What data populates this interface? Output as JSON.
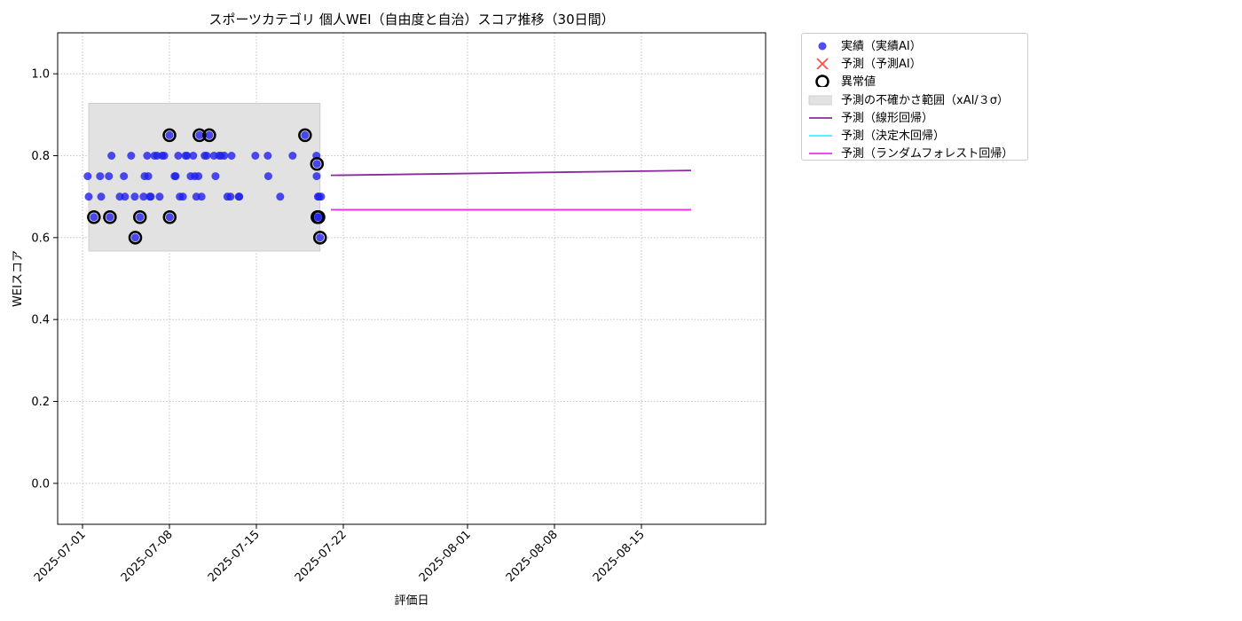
{
  "chart_data": {
    "type": "scatter",
    "title": "スポーツカテゴリ 個人WEI（自由度と自治）スコア推移（30日間）",
    "xlabel": "評価日",
    "ylabel": "WEIスコア",
    "ylim": [
      -0.1,
      1.1
    ],
    "xlim": [
      "2025-06-29",
      "2025-08-25"
    ],
    "x_ticks": [
      "2025-07-01",
      "2025-07-08",
      "2025-07-15",
      "2025-07-22",
      "2025-08-01",
      "2025-08-08",
      "2025-08-15"
    ],
    "y_ticks": [
      0.0,
      0.2,
      0.4,
      0.6,
      0.8,
      1.0
    ],
    "y_tick_labels": [
      "0.0",
      "0.2",
      "0.4",
      "0.6",
      "0.8",
      "1.0"
    ],
    "grid": true,
    "legend_position": "outside-top-right",
    "series": [
      {
        "name": "実績（実績AI）",
        "kind": "scatter",
        "color": "#2020ee",
        "points": [
          [
            "2025-07-01 10:00",
            0.75
          ],
          [
            "2025-07-01 12:00",
            0.7
          ],
          [
            "2025-07-01 22:00",
            0.65
          ],
          [
            "2025-07-02 10:00",
            0.75
          ],
          [
            "2025-07-02 12:00",
            0.7
          ],
          [
            "2025-07-03 03:00",
            0.75
          ],
          [
            "2025-07-03 05:00",
            0.65
          ],
          [
            "2025-07-03 08:00",
            0.8
          ],
          [
            "2025-07-04 00:00",
            0.7
          ],
          [
            "2025-07-04 08:00",
            0.75
          ],
          [
            "2025-07-04 10:00",
            0.7
          ],
          [
            "2025-07-04 22:00",
            0.8
          ],
          [
            "2025-07-05 05:00",
            0.7
          ],
          [
            "2025-07-05 06:00",
            0.6
          ],
          [
            "2025-07-05 15:00",
            0.65
          ],
          [
            "2025-07-05 22:00",
            0.7
          ],
          [
            "2025-07-06 00:00",
            0.75
          ],
          [
            "2025-07-06 05:00",
            0.8
          ],
          [
            "2025-07-06 07:00",
            0.75
          ],
          [
            "2025-07-06 10:00",
            0.7
          ],
          [
            "2025-07-06 12:00",
            0.7
          ],
          [
            "2025-07-06 19:00",
            0.8
          ],
          [
            "2025-07-07 00:00",
            0.8
          ],
          [
            "2025-07-07 05:00",
            0.7
          ],
          [
            "2025-07-07 10:00",
            0.8
          ],
          [
            "2025-07-07 14:00",
            0.8
          ],
          [
            "2025-07-08 00:00",
            0.85
          ],
          [
            "2025-07-08 00:30",
            0.65
          ],
          [
            "2025-07-08 10:00",
            0.75
          ],
          [
            "2025-07-08 12:00",
            0.75
          ],
          [
            "2025-07-08 17:00",
            0.8
          ],
          [
            "2025-07-08 20:00",
            0.7
          ],
          [
            "2025-07-09 02:00",
            0.7
          ],
          [
            "2025-07-09 07:00",
            0.8
          ],
          [
            "2025-07-09 10:00",
            0.8
          ],
          [
            "2025-07-09 17:00",
            0.75
          ],
          [
            "2025-07-09 22:00",
            0.8
          ],
          [
            "2025-07-10 01:00",
            0.75
          ],
          [
            "2025-07-10 04:00",
            0.7
          ],
          [
            "2025-07-10 08:00",
            0.75
          ],
          [
            "2025-07-10 10:00",
            0.85
          ],
          [
            "2025-07-10 14:00",
            0.7
          ],
          [
            "2025-07-10 20:00",
            0.8
          ],
          [
            "2025-07-11 00:00",
            0.8
          ],
          [
            "2025-07-11 05:00",
            0.85
          ],
          [
            "2025-07-11 14:00",
            0.8
          ],
          [
            "2025-07-11 17:00",
            0.75
          ],
          [
            "2025-07-12 00:00",
            0.8
          ],
          [
            "2025-07-12 04:00",
            0.8
          ],
          [
            "2025-07-12 10:00",
            0.8
          ],
          [
            "2025-07-12 16:00",
            0.7
          ],
          [
            "2025-07-12 22:00",
            0.7
          ],
          [
            "2025-07-13 00:00",
            0.8
          ],
          [
            "2025-07-13 14:00",
            0.7
          ],
          [
            "2025-07-13 15:00",
            0.7
          ],
          [
            "2025-07-14 22:00",
            0.8
          ],
          [
            "2025-07-15 22:00",
            0.8
          ],
          [
            "2025-07-15 23:00",
            0.75
          ],
          [
            "2025-07-16 22:00",
            0.7
          ],
          [
            "2025-07-17 22:00",
            0.8
          ],
          [
            "2025-07-18 22:00",
            0.85
          ],
          [
            "2025-07-19 20:00",
            0.8
          ],
          [
            "2025-07-19 20:30",
            0.75
          ],
          [
            "2025-07-19 21:00",
            0.78
          ],
          [
            "2025-07-19 22:00",
            0.65
          ],
          [
            "2025-07-19 23:00",
            0.7
          ],
          [
            "2025-07-20 00:00",
            0.65
          ],
          [
            "2025-07-20 01:00",
            0.7
          ],
          [
            "2025-07-20 03:00",
            0.6
          ],
          [
            "2025-07-20 05:00",
            0.7
          ]
        ]
      },
      {
        "name": "予測（予測AI）",
        "kind": "marker-x",
        "color": "#ff3030",
        "points": []
      },
      {
        "name": "異常値",
        "kind": "ring",
        "color": "#000000",
        "points": [
          [
            "2025-07-01 22:00",
            0.65
          ],
          [
            "2025-07-03 05:00",
            0.65
          ],
          [
            "2025-07-05 06:00",
            0.6
          ],
          [
            "2025-07-05 15:00",
            0.65
          ],
          [
            "2025-07-08 00:00",
            0.85
          ],
          [
            "2025-07-08 00:30",
            0.65
          ],
          [
            "2025-07-10 10:00",
            0.85
          ],
          [
            "2025-07-11 05:00",
            0.85
          ],
          [
            "2025-07-18 22:00",
            0.85
          ],
          [
            "2025-07-19 21:00",
            0.78
          ],
          [
            "2025-07-19 22:00",
            0.65
          ],
          [
            "2025-07-20 00:00",
            0.65
          ],
          [
            "2025-07-20 03:00",
            0.6
          ]
        ]
      },
      {
        "name": "予測の不確かさ範囲（xAI/３σ）",
        "kind": "band",
        "color": "#d0d0d0",
        "x_start": "2025-07-01 12:00",
        "x_end": "2025-07-20 03:00",
        "y_low": 0.567,
        "y_high": 0.928
      },
      {
        "name": "予測（線形回帰）",
        "kind": "line",
        "color": "#8b2a9e",
        "x": [
          "2025-07-21",
          "2025-08-19"
        ],
        "y": [
          0.752,
          0.764
        ]
      },
      {
        "name": "予測（決定木回帰）",
        "kind": "line",
        "color": "#40f0ff",
        "x": [
          "2025-07-21",
          "2025-08-19"
        ],
        "y": [
          0.668,
          0.668
        ]
      },
      {
        "name": "予測（ランダムフォレスト回帰）",
        "kind": "line",
        "color": "#ee30ee",
        "x": [
          "2025-07-21",
          "2025-08-19"
        ],
        "y": [
          0.668,
          0.668
        ]
      }
    ]
  }
}
